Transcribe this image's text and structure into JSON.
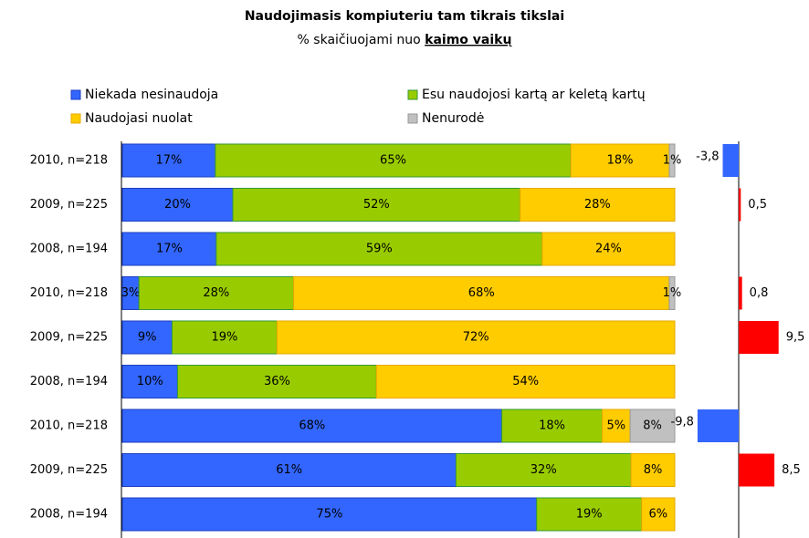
{
  "chart_data": [
    {
      "type": "bar",
      "orientation": "horizontal",
      "stacked": "percent",
      "title": "Naudojimasis kompiuteriu tam tikrais tikslai",
      "subtitle": "% skaičiuojami nuo",
      "subtitle_emphasis": "kaimo vaikų",
      "categories": [
        "2010, n=218",
        "2009, n=225",
        "2008, n=194",
        "2010, n=218",
        "2009, n=225",
        "2008, n=194",
        "2010, n=218",
        "2009, n=225",
        "2008, n=194"
      ],
      "series": [
        {
          "name": "Niekada nesinaudoja",
          "color": "#3366ff",
          "border": "#1f3fbf",
          "values": [
            17,
            20,
            17,
            3,
            9,
            10,
            68,
            61,
            75
          ],
          "value_labels": [
            "17%",
            "20%",
            "17%",
            "3%",
            "9%",
            "10%",
            "68%",
            "61%",
            "75%"
          ]
        },
        {
          "name": "Esu naudojosi kartą ar keletą kartų",
          "color": "#99cc00",
          "border": "#339933",
          "values": [
            65,
            52,
            59,
            28,
            19,
            36,
            18,
            32,
            19
          ],
          "value_labels": [
            "65%",
            "52%",
            "59%",
            "28%",
            "19%",
            "36%",
            "18%",
            "32%",
            "19%"
          ]
        },
        {
          "name": "Naudojasi nuolat",
          "color": "#ffcc00",
          "border": "#e6a800",
          "values": [
            18,
            28,
            24,
            68,
            72,
            54,
            5,
            8,
            6
          ],
          "value_labels": [
            "18%",
            "28%",
            "24%",
            "68%",
            "72%",
            "54%",
            "5%",
            "8%",
            "6%"
          ]
        },
        {
          "name": "Nenurodė",
          "color": "#c0c0c0",
          "border": "#999999",
          "values": [
            1,
            null,
            null,
            1,
            null,
            null,
            8,
            null,
            null
          ],
          "value_labels": [
            "1%",
            null,
            null,
            "1%",
            null,
            null,
            "8%",
            null,
            null
          ]
        }
      ]
    },
    {
      "type": "bar",
      "orientation": "horizontal",
      "values": [
        -3.8,
        0.5,
        null,
        0.8,
        9.5,
        null,
        -9.8,
        8.5,
        null
      ],
      "value_labels": [
        "-3,8",
        "0,5",
        null,
        "0,8",
        "9,5",
        null,
        "-9,8",
        "8,5",
        null
      ],
      "color_positive": "#ff0000",
      "color_negative": "#3366ff",
      "xlim": [
        -10,
        10
      ]
    }
  ]
}
